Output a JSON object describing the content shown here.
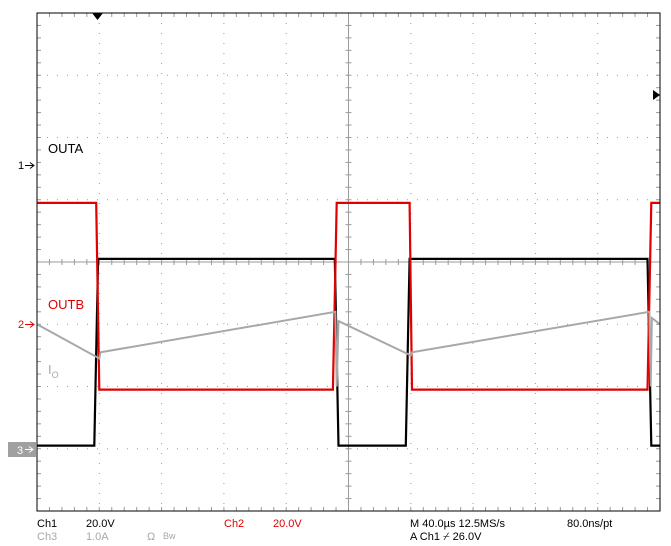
{
  "colors": {
    "ch1": "#000000",
    "ch2": "#e00000",
    "ch3": "#a8a8a8",
    "grid": "#9a9a9a",
    "border": "#000000",
    "ch3_marker_bg": "#a0a0a0"
  },
  "icons": {
    "trigger_position": "triangle-down-icon",
    "trigger_level": "arrow-left-icon",
    "channel_marker": "arrow-right-icon"
  },
  "markers": {
    "ch1": "1",
    "ch2": "2",
    "ch3": "3"
  },
  "status": {
    "ch1_name": "Ch1",
    "ch1_scale": "20.0V",
    "ch3_name": "Ch3",
    "ch3_scale": "1.0A",
    "ch3_impedance": "Ω",
    "ch3_bw": "Bw",
    "ch2_name": "Ch2",
    "ch2_scale": "20.0V",
    "timebase": "M 40.0µs 12.5MS/s",
    "resolution": "80.0ns/pt",
    "trigger": "A Ch1 ⌿ 26.0V"
  },
  "chart_data": {
    "type": "line",
    "grid": true,
    "divisions": {
      "x": 10,
      "y": 8
    },
    "x_unit": "div",
    "xlim": [
      0,
      10
    ],
    "series": [
      {
        "name": "OUTA",
        "channel": 1,
        "color": "#000000",
        "points": [
          [
            0,
            1.05
          ],
          [
            0.92,
            1.05
          ],
          [
            0.98,
            4.05
          ],
          [
            4.78,
            4.05
          ],
          [
            4.84,
            1.05
          ],
          [
            5.92,
            1.05
          ],
          [
            5.98,
            4.05
          ],
          [
            9.8,
            4.05
          ],
          [
            9.86,
            1.05
          ],
          [
            10,
            1.05
          ]
        ]
      },
      {
        "name": "OUTB",
        "channel": 2,
        "color": "#e00000",
        "points": [
          [
            0,
            4.95
          ],
          [
            0.95,
            4.95
          ],
          [
            1.0,
            1.95
          ],
          [
            4.75,
            1.95
          ],
          [
            4.81,
            4.95
          ],
          [
            5.98,
            4.95
          ],
          [
            6.02,
            1.95
          ],
          [
            9.8,
            1.95
          ],
          [
            9.86,
            4.95
          ],
          [
            10,
            4.95
          ]
        ]
      },
      {
        "name": "I",
        "name_subscript": "O",
        "channel": 3,
        "color": "#a8a8a8",
        "points": [
          [
            0,
            3.0
          ],
          [
            1.0,
            2.45
          ],
          [
            1.02,
            2.55
          ],
          [
            4.79,
            3.2
          ],
          [
            4.81,
            2.0
          ],
          [
            4.84,
            3.05
          ],
          [
            6.0,
            2.5
          ],
          [
            6.02,
            2.55
          ],
          [
            9.83,
            3.2
          ],
          [
            9.85,
            2.0
          ],
          [
            9.87,
            3.1
          ],
          [
            10,
            3.0
          ]
        ]
      }
    ]
  }
}
